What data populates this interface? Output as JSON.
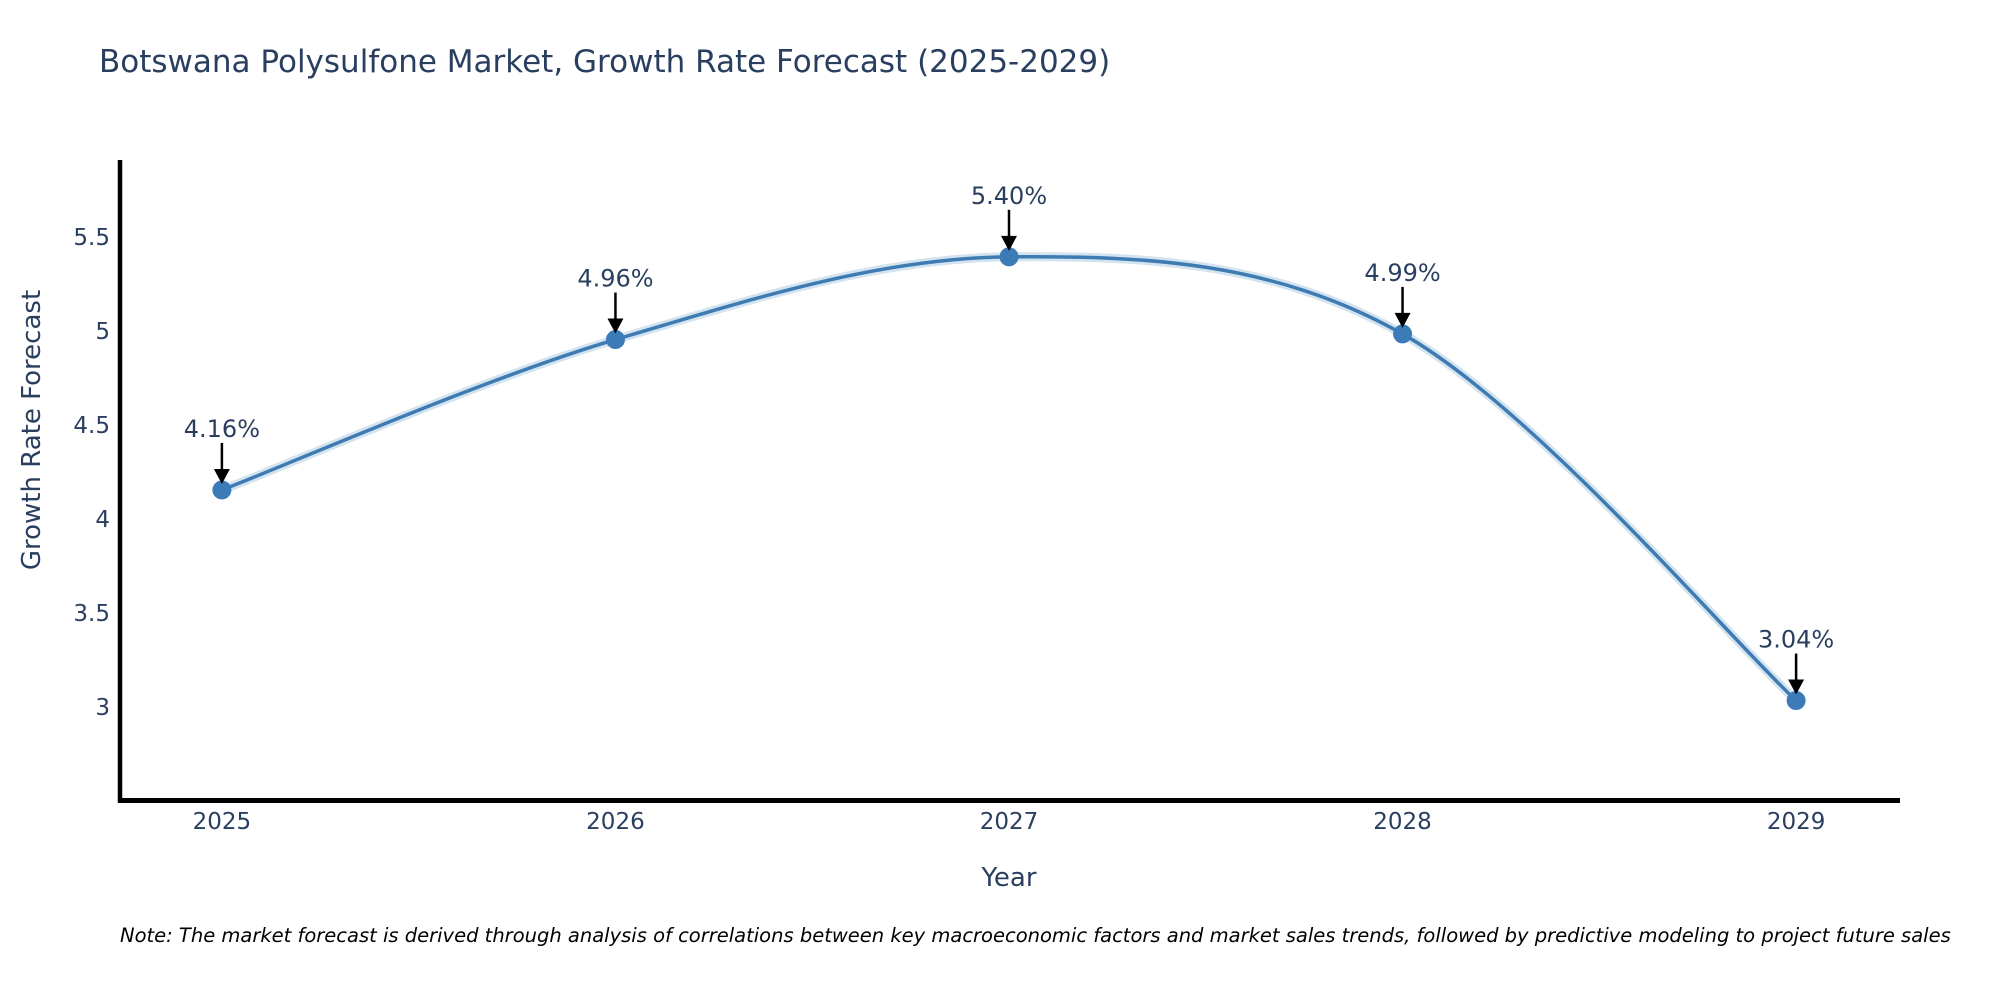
{
  "title": "Botswana Polysulfone Market, Growth Rate Forecast (2025-2029)",
  "note": "Note: The market forecast is derived through analysis of correlations between key macroeconomic factors and market sales trends, followed by predictive modeling to project future sales",
  "chart_data": {
    "type": "line",
    "title": "Botswana Polysulfone Market, Growth Rate Forecast (2025-2029)",
    "xlabel": "Year",
    "ylabel": "Growth Rate Forecast",
    "x": [
      2025,
      2026,
      2027,
      2028,
      2029
    ],
    "values": [
      4.16,
      4.96,
      5.4,
      4.99,
      3.04
    ],
    "point_labels": [
      "4.16%",
      "4.96%",
      "5.40%",
      "4.99%",
      "3.04%"
    ],
    "xticks": [
      "2025",
      "2026",
      "2027",
      "2028",
      "2029"
    ],
    "yticks": [
      3,
      3.5,
      4,
      4.5,
      5,
      5.5
    ],
    "xlim": [
      2024.736,
      2029.264
    ],
    "ylim": [
      2.511,
      5.915
    ],
    "grid": false,
    "legend": "none",
    "line_shape": "spline",
    "annotation_style": "value label with downward arrow to each marker",
    "colors": {
      "line": "#3d7bb2",
      "line_halo": "#9dc0de",
      "marker": "#3b7cb8",
      "text": "#2a3f5f",
      "axis_line": "#000000",
      "annotation_arrow": "#000000",
      "note_text": "#000000",
      "background": "#ffffff"
    }
  }
}
